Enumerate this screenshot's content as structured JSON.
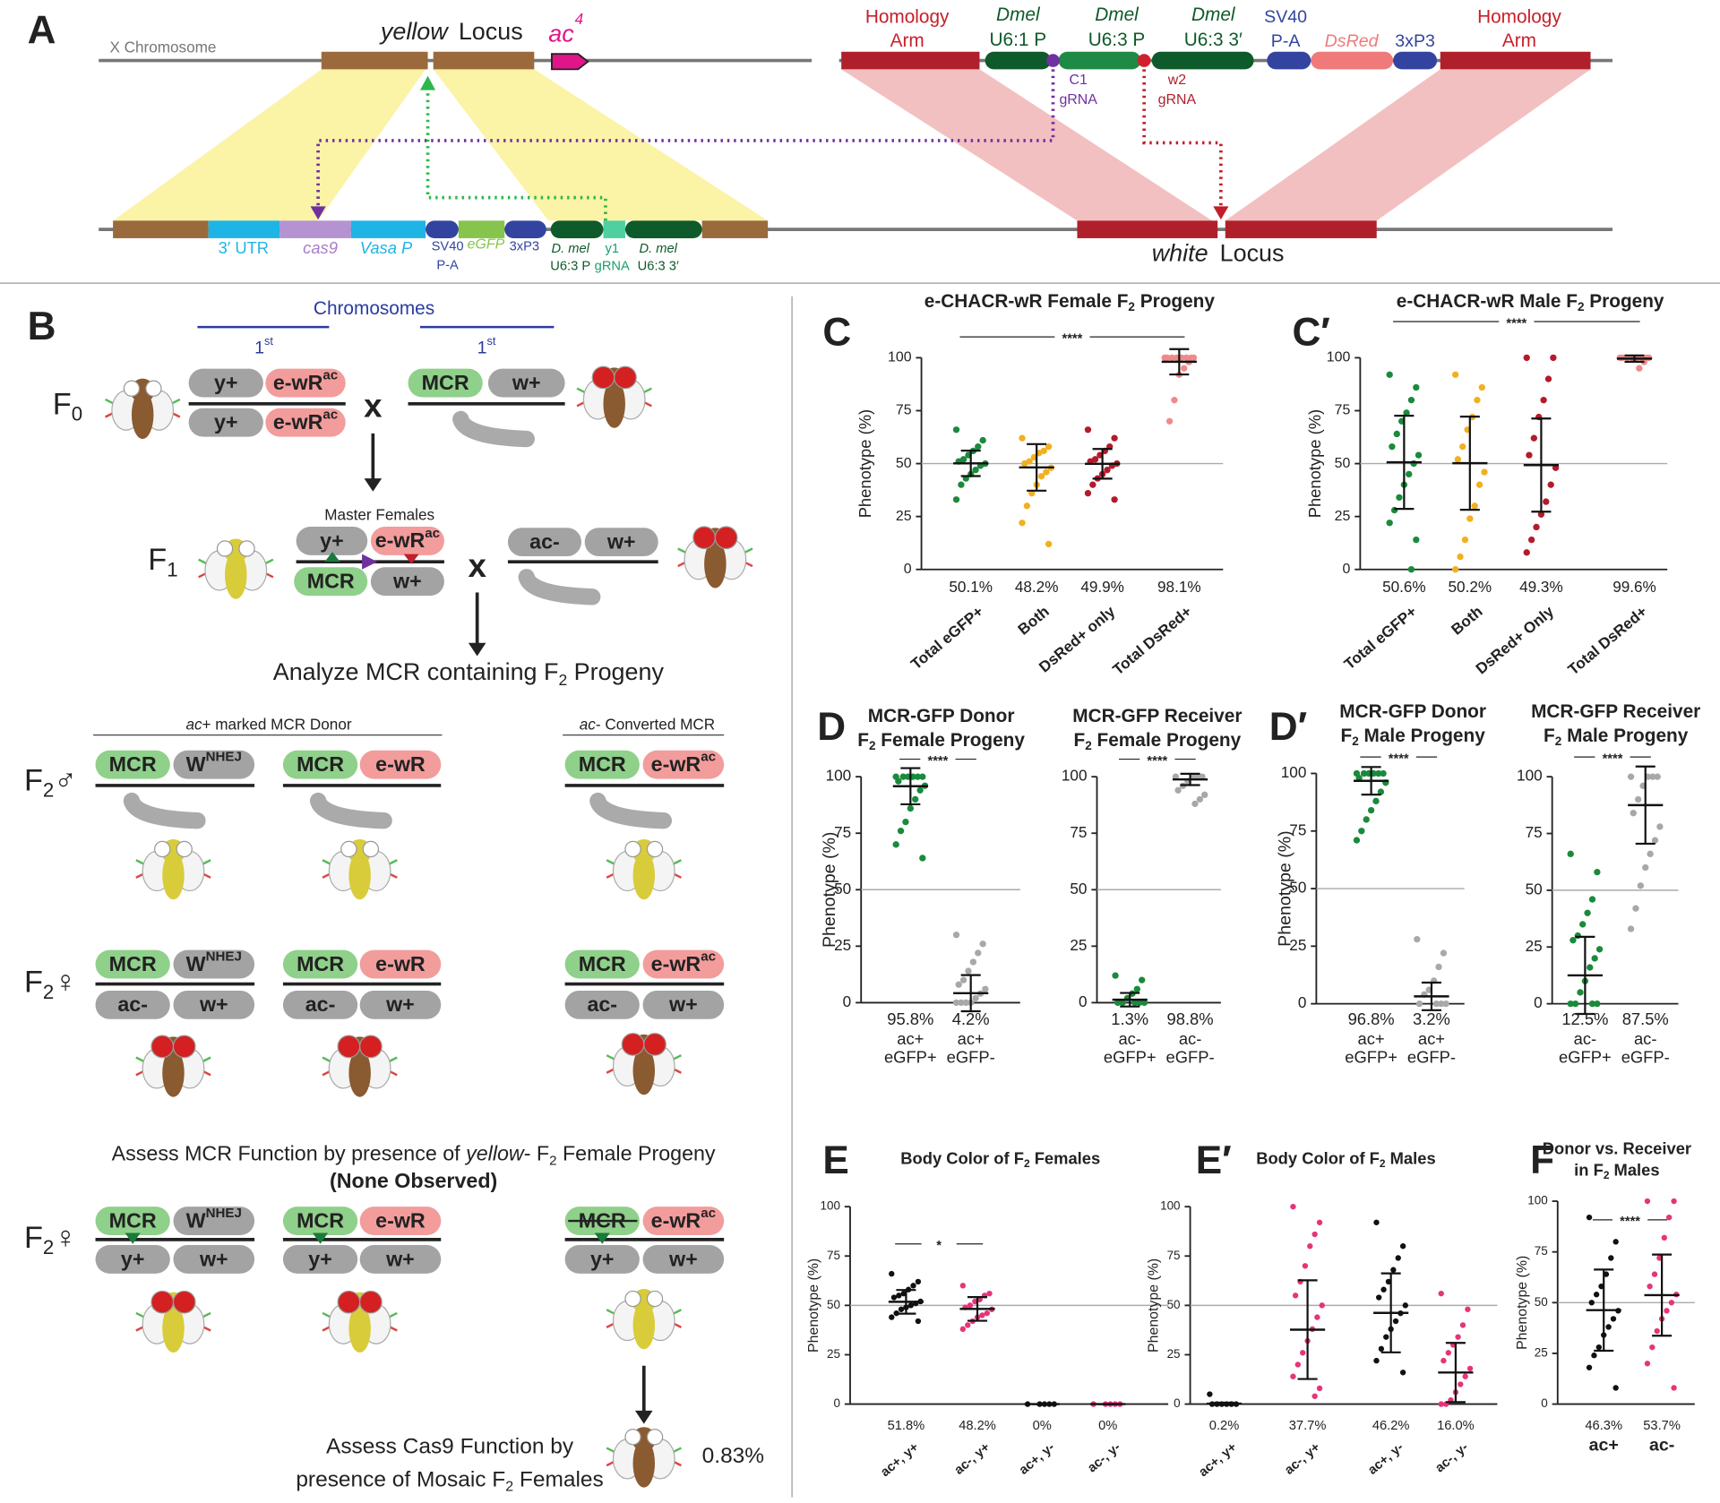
{
  "panel_labels": [
    "A",
    "B",
    "C",
    "C′",
    "D",
    "D′",
    "E",
    "E′",
    "F"
  ],
  "panel_a": {
    "labels": [
      "X Chromosome",
      "yellow",
      "Locus",
      "ac",
      "4",
      "Homology",
      "Arm",
      "Dmel",
      "U6:1 P",
      "Dmel",
      "U6:3 P",
      "Dmel",
      "U6:3 3′",
      "SV40",
      "P-A",
      "DsRed",
      "3xP3",
      "Homology",
      "Arm",
      "C1",
      "gRNA",
      "w2",
      "gRNA",
      "3′ UTR",
      "cas9",
      "Vasa P",
      "SV40",
      "P-A",
      "eGFP",
      "3xP3",
      "D. mel",
      "U6:3 P",
      "y1",
      "gRNA",
      "D. mel",
      "U6:3 3′",
      "white",
      "Locus"
    ]
  },
  "panel_b": {
    "chromosomes": "Chromosomes",
    "chromosome_numbers": [
      [
        {
          "text": "1"
        },
        {
          "text": "st",
          "style": "sup"
        }
      ],
      [
        {
          "text": "1"
        },
        {
          "text": "st",
          "style": "sup"
        }
      ]
    ],
    "generations": [
      [
        {
          "text": "F"
        },
        {
          "text": "0",
          "style": "sub"
        }
      ],
      [
        {
          "text": "F"
        },
        {
          "text": "1",
          "style": "sub"
        }
      ],
      [
        {
          "text": "F"
        },
        {
          "text": "2",
          "style": "sub"
        },
        {
          "text": "♂"
        }
      ],
      [
        {
          "text": "F"
        },
        {
          "text": "2",
          "style": "sub"
        },
        {
          "text": "♀"
        }
      ],
      [
        {
          "text": "F"
        },
        {
          "text": "2",
          "style": "sub"
        },
        {
          "text": "♀"
        }
      ]
    ],
    "crosses": [
      "x",
      "x"
    ],
    "master_females": "Master Females",
    "alleles": [
      "y+",
      [
        {
          "text": "e-wR"
        },
        {
          "text": "ac",
          "style": "sup"
        }
      ],
      "y+",
      [
        {
          "text": "e-wR"
        },
        {
          "text": "ac",
          "style": "sup"
        }
      ],
      "MCR",
      "w+",
      "y+",
      [
        {
          "text": "e-wR"
        },
        {
          "text": "ac",
          "style": "sup"
        }
      ],
      "MCR",
      "w+",
      "ac-",
      "w+",
      "MCR",
      [
        {
          "text": "W"
        },
        {
          "text": "NHEJ",
          "style": "sup"
        }
      ],
      "MCR",
      "e-wR",
      "MCR",
      [
        {
          "text": "e-wR"
        },
        {
          "text": "ac",
          "style": "sup"
        }
      ],
      "MCR",
      [
        {
          "text": "W"
        },
        {
          "text": "NHEJ",
          "style": "sup"
        }
      ],
      "MCR",
      "e-wR",
      "MCR",
      [
        {
          "text": "e-wR"
        },
        {
          "text": "ac",
          "style": "sup"
        }
      ],
      "ac-",
      "w+",
      "ac-",
      "w+",
      "ac-",
      "w+",
      "MCR",
      [
        {
          "text": "W"
        },
        {
          "text": "NHEJ",
          "style": "sup"
        }
      ],
      "MCR",
      "e-wR",
      "MCR",
      [
        {
          "text": "e-wR"
        },
        {
          "text": "ac",
          "style": "sup"
        }
      ],
      "y+",
      "w+",
      "y+",
      "w+",
      "y+",
      "w+"
    ],
    "analyze": [
      {
        "text": "Analyze MCR containing F"
      },
      {
        "text": "2",
        "style": "sub"
      },
      {
        "text": " Progeny"
      }
    ],
    "donor_header": [
      {
        "text": "ac",
        "style": "italic"
      },
      {
        "text": "+ marked MCR Donor"
      }
    ],
    "converted_header": [
      {
        "text": "ac",
        "style": "italic"
      },
      {
        "text": "- Converted MCR"
      }
    ],
    "assess_mcr": [
      [
        {
          "text": "Assess MCR Function by presence of "
        },
        {
          "text": "yellow",
          "style": "italic"
        },
        {
          "text": "- F"
        },
        {
          "text": "2",
          "style": "sub"
        },
        {
          "text": " Female Progeny"
        }
      ],
      [
        {
          "text": "(None Observed)",
          "style": "bold"
        }
      ]
    ],
    "assess_cas9": [
      [
        {
          "text": "Assess Cas9 Function by"
        }
      ],
      [
        {
          "text": "presence of Mosaic F"
        },
        {
          "text": "2",
          "style": "sub"
        },
        {
          "text": " Females"
        }
      ]
    ],
    "mosaic_rate": "0.83%"
  },
  "chart_data": [
    {
      "type": "dot",
      "title": [
        [
          {
            "text": "e-CHACR-wR Female F"
          },
          {
            "text": "2",
            "style": "sub"
          },
          {
            "text": " Progeny"
          }
        ]
      ],
      "y_label": "Phenotype (%)",
      "categories": [
        "Total eGFP+",
        "Both",
        "DsRed+ only",
        "Total DsRed+"
      ],
      "values": [
        50.1,
        48.2,
        49.9,
        98.1
      ],
      "value_labels": [
        "50.1%",
        "48.2%",
        "49.9%",
        "98.1%"
      ],
      "errors": [
        6,
        11,
        7,
        6
      ],
      "colors": [
        "#1a8a3c",
        "#f2b020",
        "#b31b2b",
        "#f08a8a"
      ],
      "points": [
        [
          66,
          61,
          58,
          56,
          54,
          52,
          51,
          50,
          49,
          47,
          45,
          43,
          40,
          33
        ],
        [
          62,
          58,
          56,
          55,
          53,
          51,
          50,
          48,
          46,
          44,
          40,
          36,
          30,
          22,
          12
        ],
        [
          66,
          62,
          58,
          56,
          54,
          52,
          51,
          50,
          49,
          47,
          45,
          43,
          40,
          36,
          33
        ],
        [
          100,
          100,
          100,
          100,
          100,
          100,
          100,
          100,
          98,
          95,
          92,
          80,
          70
        ]
      ],
      "ylim": [
        0,
        100
      ],
      "yticks": [
        0,
        25,
        50,
        75,
        100
      ],
      "reference_line": 50,
      "significance": "****"
    },
    {
      "type": "dot",
      "title": [
        [
          {
            "text": "e-CHACR-wR Male F"
          },
          {
            "text": "2",
            "style": "sub"
          },
          {
            "text": " Progeny"
          }
        ]
      ],
      "y_label": "Phenotype (%)",
      "categories": [
        "Total eGFP+",
        "Both",
        "DsRed+ Only",
        "Total DsRed+"
      ],
      "values": [
        50.6,
        50.2,
        49.3,
        99.6
      ],
      "value_labels": [
        "50.6%",
        "50.2%",
        "49.3%",
        "99.6%"
      ],
      "errors": [
        22,
        22,
        22,
        1.5
      ],
      "colors": [
        "#1a8a3c",
        "#f2b020",
        "#b31b2b",
        "#f08a8a"
      ],
      "points": [
        [
          92,
          86,
          80,
          74,
          70,
          64,
          58,
          54,
          50,
          45,
          40,
          34,
          28,
          22,
          14,
          0
        ],
        [
          92,
          86,
          80,
          72,
          66,
          58,
          52,
          46,
          40,
          30,
          24,
          14,
          6,
          0
        ],
        [
          100,
          100,
          90,
          80,
          72,
          62,
          54,
          48,
          40,
          32,
          26,
          20,
          14,
          8
        ],
        [
          100,
          100,
          100,
          100,
          100,
          100,
          100,
          100,
          98,
          95
        ]
      ],
      "ylim": [
        0,
        100
      ],
      "yticks": [
        0,
        25,
        50,
        75,
        100
      ],
      "reference_line": 50,
      "significance": "****"
    },
    {
      "type": "dot",
      "title": [
        [
          {
            "text": "MCR-GFP Donor"
          }
        ],
        [
          {
            "text": "F"
          },
          {
            "text": "2",
            "style": "sub"
          },
          {
            "text": " Female Progeny"
          }
        ]
      ],
      "y_label": "Phenotype (%)",
      "categories": [
        [
          "ac+",
          "eGFP+"
        ],
        [
          "ac+",
          "eGFP-"
        ]
      ],
      "values": [
        95.8,
        4.2
      ],
      "value_labels": [
        "95.8%",
        "4.2%"
      ],
      "errors": [
        8,
        8
      ],
      "colors": [
        "#1a8a3c",
        "#a8a8a8"
      ],
      "points": [
        [
          100,
          100,
          100,
          100,
          100,
          100,
          98,
          96,
          94,
          90,
          86,
          80,
          76,
          70,
          64
        ],
        [
          30,
          26,
          22,
          18,
          14,
          10,
          8,
          6,
          4,
          2,
          0,
          0,
          0,
          0
        ]
      ],
      "ylim": [
        0,
        100
      ],
      "yticks": [
        0,
        25,
        50,
        75,
        100
      ],
      "reference_line": 50,
      "significance": "****"
    },
    {
      "type": "dot",
      "title": [
        [
          {
            "text": "MCR-GFP Receiver"
          }
        ],
        [
          {
            "text": "F"
          },
          {
            "text": "2",
            "style": "sub"
          },
          {
            "text": " Female Progeny"
          }
        ]
      ],
      "categories": [
        [
          "ac-",
          "eGFP+"
        ],
        [
          "ac-",
          "eGFP-"
        ]
      ],
      "values": [
        1.3,
        98.8
      ],
      "value_labels": [
        "1.3%",
        "98.8%"
      ],
      "errors": [
        3,
        2.5
      ],
      "colors": [
        "#1a8a3c",
        "#a8a8a8"
      ],
      "points": [
        [
          12,
          10,
          6,
          4,
          2,
          0,
          0,
          0,
          0,
          0
        ],
        [
          100,
          100,
          100,
          100,
          98,
          96,
          94,
          92,
          90,
          88
        ]
      ],
      "ylim": [
        0,
        100
      ],
      "yticks": [
        0,
        25,
        50,
        75,
        100
      ],
      "reference_line": 50,
      "significance": "****"
    },
    {
      "type": "dot",
      "title": [
        [
          {
            "text": "MCR-GFP Donor"
          }
        ],
        [
          {
            "text": "F"
          },
          {
            "text": "2",
            "style": "sub"
          },
          {
            "text": " Male Progeny"
          }
        ]
      ],
      "y_label": "Phenotype (%)",
      "categories": [
        [
          "ac+",
          "eGFP+"
        ],
        [
          "ac+",
          "eGFP-"
        ]
      ],
      "values": [
        96.8,
        3.2
      ],
      "value_labels": [
        "96.8%",
        "3.2%"
      ],
      "errors": [
        6,
        6
      ],
      "colors": [
        "#1a8a3c",
        "#a8a8a8"
      ],
      "points": [
        [
          100,
          100,
          100,
          100,
          100,
          100,
          98,
          96,
          92,
          88,
          84,
          80,
          75,
          71
        ],
        [
          28,
          22,
          16,
          10,
          6,
          4,
          0,
          0,
          0,
          0
        ]
      ],
      "ylim": [
        0,
        100
      ],
      "yticks": [
        0,
        25,
        50,
        75,
        100
      ],
      "reference_line": 50,
      "significance": "****"
    },
    {
      "type": "dot",
      "title": [
        [
          {
            "text": "MCR-GFP Receiver"
          }
        ],
        [
          {
            "text": "F"
          },
          {
            "text": "2",
            "style": "sub"
          },
          {
            "text": " Male Progeny"
          }
        ]
      ],
      "categories": [
        [
          "ac-",
          "eGFP+"
        ],
        [
          "ac-",
          "eGFP-"
        ]
      ],
      "values": [
        12.5,
        87.5
      ],
      "value_labels": [
        "12.5%",
        "87.5%"
      ],
      "errors": [
        17,
        17
      ],
      "colors": [
        "#1a8a3c",
        "#a8a8a8"
      ],
      "points": [
        [
          66,
          58,
          46,
          40,
          35,
          30,
          28,
          24,
          20,
          16,
          10,
          5,
          0,
          0,
          0,
          0
        ],
        [
          100,
          100,
          100,
          100,
          96,
          90,
          84,
          78,
          72,
          66,
          60,
          52,
          42,
          33
        ]
      ],
      "ylim": [
        0,
        100
      ],
      "yticks": [
        0,
        25,
        50,
        75,
        100
      ],
      "reference_line": 50,
      "significance": "****"
    },
    {
      "type": "dot",
      "title": [
        [
          {
            "text": "Body Color of F"
          },
          {
            "text": "2",
            "style": "sub"
          },
          {
            "text": " Females"
          }
        ]
      ],
      "y_label": "Phenotype (%)",
      "categories": [
        "ac+, y+",
        "ac-, y+",
        "ac+, y-",
        "ac-, y-"
      ],
      "values": [
        51.8,
        48.2,
        0,
        0
      ],
      "value_labels": [
        "51.8%",
        "48.2%",
        "0%",
        "0%"
      ],
      "errors": [
        6,
        6,
        0,
        0
      ],
      "colors": [
        "#111111",
        "#e6347a",
        "#111111",
        "#e6347a"
      ],
      "points": [
        [
          66,
          62,
          60,
          58,
          56,
          55,
          54,
          52,
          51,
          50,
          49,
          48,
          46,
          44,
          42
        ],
        [
          60,
          56,
          55,
          53,
          52,
          50,
          49,
          48,
          46,
          45,
          44,
          42,
          40,
          38
        ],
        [
          0,
          0,
          0,
          0,
          0
        ],
        [
          0,
          0,
          0,
          0,
          0
        ]
      ],
      "ylim": [
        0,
        100
      ],
      "yticks": [
        0,
        25,
        50,
        75,
        100
      ],
      "reference_line": 50,
      "significance": "*"
    },
    {
      "type": "dot",
      "title": [
        [
          {
            "text": "Body Color of F"
          },
          {
            "text": "2",
            "style": "sub"
          },
          {
            "text": " Males"
          }
        ]
      ],
      "y_label": "Phenotype (%)",
      "categories": [
        "ac+, y+",
        "ac-, y+",
        "ac+, y-",
        "ac-, y-"
      ],
      "values": [
        0.2,
        37.7,
        46.2,
        16.0
      ],
      "value_labels": [
        "0.2%",
        "37.7%",
        "46.2%",
        "16.0%"
      ],
      "errors": [
        0.5,
        25,
        20,
        15
      ],
      "colors": [
        "#111111",
        "#e6347a",
        "#111111",
        "#e6347a"
      ],
      "points": [
        [
          5,
          0,
          0,
          0,
          0,
          0,
          0
        ],
        [
          100,
          92,
          86,
          80,
          70,
          62,
          55,
          50,
          44,
          38,
          32,
          26,
          20,
          14,
          8,
          4
        ],
        [
          92,
          80,
          74,
          68,
          62,
          58,
          54,
          50,
          46,
          42,
          38,
          34,
          28,
          22,
          16
        ],
        [
          56,
          48,
          40,
          34,
          30,
          26,
          22,
          18,
          14,
          10,
          6,
          2,
          0,
          0
        ]
      ],
      "ylim": [
        0,
        100
      ],
      "yticks": [
        0,
        25,
        50,
        75,
        100
      ],
      "reference_line": 50
    },
    {
      "type": "dot",
      "title": [
        [
          {
            "text": "Donor vs. Receiver"
          }
        ],
        [
          {
            "text": "in F"
          },
          {
            "text": "2",
            "style": "sub"
          },
          {
            "text": " Males"
          }
        ]
      ],
      "y_label": "Phenotype (%)",
      "categories": [
        "ac+",
        "ac-"
      ],
      "values": [
        46.3,
        53.7
      ],
      "value_labels": [
        "46.3%",
        "53.7%"
      ],
      "errors": [
        20,
        20
      ],
      "colors": [
        "#111111",
        "#e6347a"
      ],
      "points": [
        [
          92,
          80,
          72,
          64,
          58,
          54,
          50,
          46,
          42,
          38,
          34,
          28,
          24,
          18,
          8
        ],
        [
          100,
          100,
          92,
          82,
          72,
          64,
          58,
          54,
          50,
          46,
          42,
          36,
          28,
          20,
          8
        ]
      ],
      "ylim": [
        0,
        100
      ],
      "yticks": [
        0,
        25,
        50,
        75,
        100
      ],
      "reference_line": 50,
      "significance": "****"
    }
  ]
}
